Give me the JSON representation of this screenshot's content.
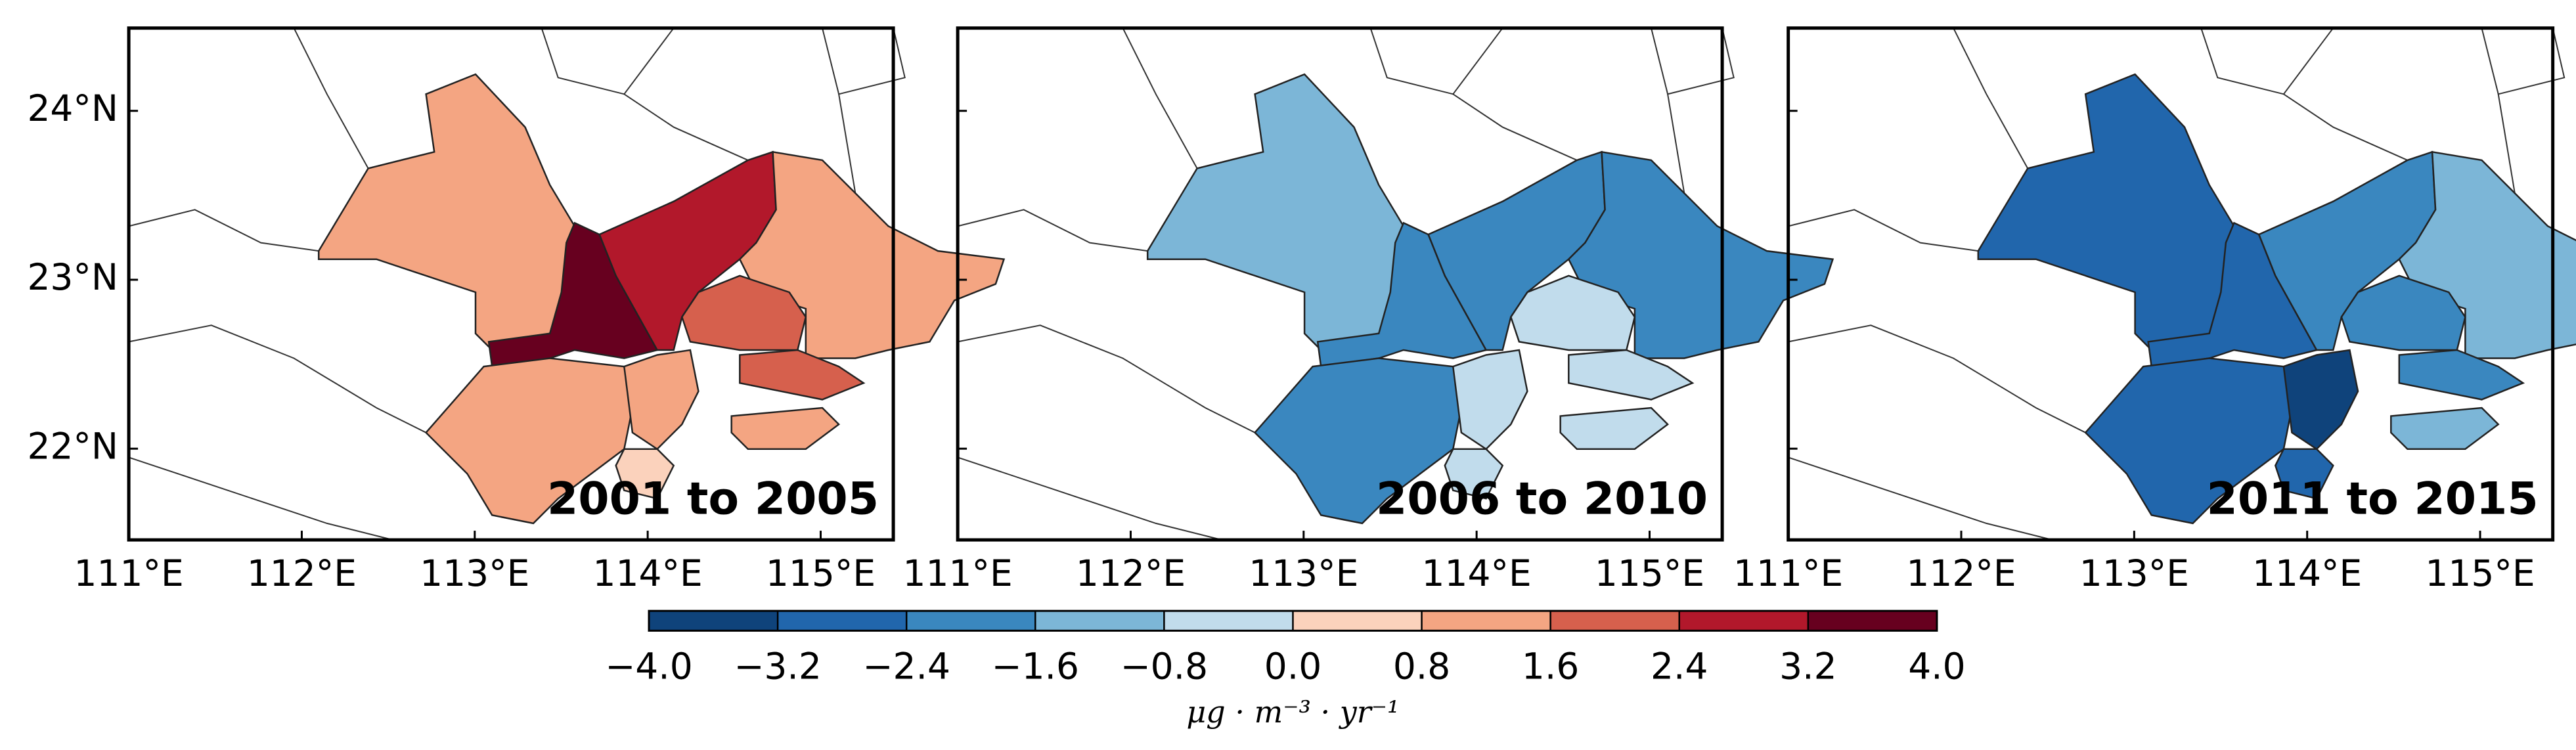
{
  "chart_data": {
    "type": "choropleth",
    "panels": [
      {
        "title": "2001 to 2005",
        "values": [
          1.0,
          3.3,
          2.6,
          1.0,
          2.0,
          1.8,
          1.5,
          1.2,
          0.4,
          1.4
        ]
      },
      {
        "title": "2006 to 2010",
        "values": [
          -1.0,
          -2.2,
          -1.9,
          -1.9,
          -0.5,
          -0.6,
          -1.7,
          -0.8,
          -0.5,
          -0.4
        ]
      },
      {
        "title": "2011 to 2015",
        "values": [
          -2.9,
          -2.8,
          -2.4,
          -1.1,
          -2.2,
          -1.7,
          -2.9,
          -3.7,
          -3.0,
          -1.6
        ]
      }
    ],
    "xlim": [
      111,
      115.42
    ],
    "ylim": [
      21.46,
      24.49
    ],
    "xticks": [
      {
        "value": 111,
        "label": "111°E"
      },
      {
        "value": 112,
        "label": "112°E"
      },
      {
        "value": 113,
        "label": "113°E"
      },
      {
        "value": 114,
        "label": "114°E"
      },
      {
        "value": 115,
        "label": "115°E"
      }
    ],
    "yticks": [
      {
        "value": 22,
        "label": "22°N"
      },
      {
        "value": 23,
        "label": "23°N"
      },
      {
        "value": 24,
        "label": "24°N"
      }
    ],
    "colorbar": {
      "label": "μg · m⁻³ · yr⁻¹",
      "colors": [
        "#0f437b",
        "#2166ac",
        "#3a87bf",
        "#7cb6d7",
        "#c1dcec",
        "#fbd2bc",
        "#f4a582",
        "#d6604d",
        "#b2182b",
        "#67001f"
      ],
      "ticks": [
        {
          "value": -4,
          "label": "−4.0"
        },
        {
          "value": -3.2,
          "label": "−3.2"
        },
        {
          "value": -2.4,
          "label": "−2.4"
        },
        {
          "value": -1.6,
          "label": "−1.6"
        },
        {
          "value": -0.8,
          "label": "−0.8"
        },
        {
          "value": 0,
          "label": "0.0"
        },
        0.8,
        1.6,
        2.4,
        3.2,
        {
          "value": 4,
          "label": "4.0"
        }
      ]
    }
  }
}
